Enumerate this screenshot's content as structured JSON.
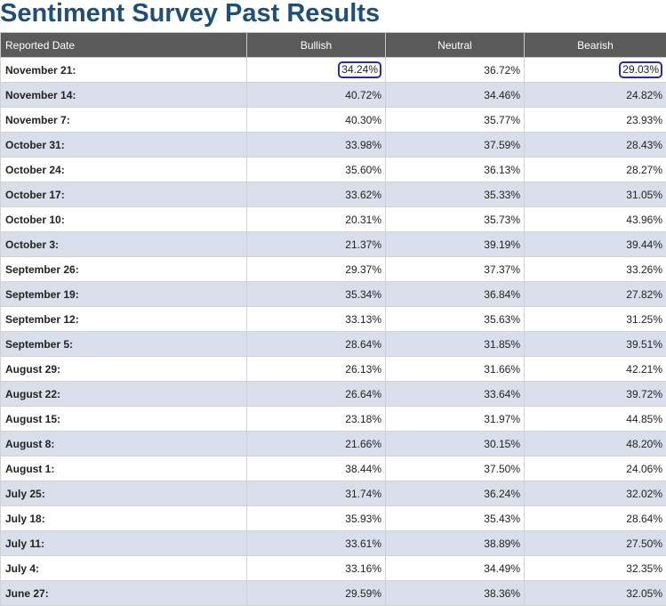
{
  "page": {
    "title": "Sentiment Survey Past Results"
  },
  "chart_data": {
    "type": "table",
    "title": "Sentiment Survey Past Results",
    "columns": [
      "Reported Date",
      "Bullish",
      "Neutral",
      "Bearish"
    ],
    "rows": [
      [
        "November 21:",
        "34.24%",
        "36.72%",
        "29.03%"
      ],
      [
        "November 14:",
        "40.72%",
        "34.46%",
        "24.82%"
      ],
      [
        "November 7:",
        "40.30%",
        "35.77%",
        "23.93%"
      ],
      [
        "October 31:",
        "33.98%",
        "37.59%",
        "28.43%"
      ],
      [
        "October 24:",
        "35.60%",
        "36.13%",
        "28.27%"
      ],
      [
        "October 17:",
        "33.62%",
        "35.33%",
        "31.05%"
      ],
      [
        "October 10:",
        "20.31%",
        "35.73%",
        "43.96%"
      ],
      [
        "October 3:",
        "21.37%",
        "39.19%",
        "39.44%"
      ],
      [
        "September 26:",
        "29.37%",
        "37.37%",
        "33.26%"
      ],
      [
        "September 19:",
        "35.34%",
        "36.84%",
        "27.82%"
      ],
      [
        "September 12:",
        "33.13%",
        "35.63%",
        "31.25%"
      ],
      [
        "September 5:",
        "28.64%",
        "31.85%",
        "39.51%"
      ],
      [
        "August 29:",
        "26.13%",
        "31.66%",
        "42.21%"
      ],
      [
        "August 22:",
        "26.64%",
        "33.64%",
        "39.72%"
      ],
      [
        "August 15:",
        "23.18%",
        "31.97%",
        "44.85%"
      ],
      [
        "August 8:",
        "21.66%",
        "30.15%",
        "48.20%"
      ],
      [
        "August 1:",
        "38.44%",
        "37.50%",
        "24.06%"
      ],
      [
        "July 25:",
        "31.74%",
        "36.24%",
        "32.02%"
      ],
      [
        "July 18:",
        "35.93%",
        "35.43%",
        "28.64%"
      ],
      [
        "July 11:",
        "33.61%",
        "38.89%",
        "27.50%"
      ],
      [
        "July 4:",
        "33.16%",
        "34.49%",
        "32.35%"
      ],
      [
        "June 27:",
        "29.59%",
        "38.36%",
        "32.05%"
      ]
    ],
    "highlighted_cells": [
      {
        "row": 0,
        "column": "Bullish",
        "value": "34.24%"
      },
      {
        "row": 0,
        "column": "Bearish",
        "value": "29.03%"
      }
    ]
  },
  "colors": {
    "title": "#1f4e79",
    "header_bg": "#5a5a5a",
    "header_text": "#ffffff",
    "row_alt_bg": "#d9dfea",
    "row_bg": "#ffffff",
    "highlight_outline": "#2b2ba8"
  }
}
